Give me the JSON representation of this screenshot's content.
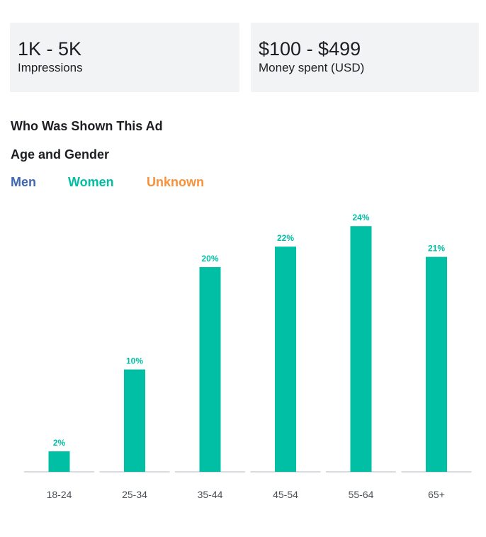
{
  "stats": {
    "impressions_value": "1K - 5K",
    "impressions_label": "Impressions",
    "money_value": "$100 - $499",
    "money_label": "Money spent (USD)"
  },
  "section_title": "Who Was Shown This Ad",
  "sub_title": "Age and Gender",
  "legend": {
    "men": "Men",
    "women": "Women",
    "unknown": "Unknown"
  },
  "colors": {
    "men": "#4267b2",
    "women": "#00bfa5",
    "unknown": "#f7923a",
    "axis": "#ccd0d5",
    "tick_text": "#4b4f56"
  },
  "chart_data": {
    "type": "bar",
    "categories": [
      "18-24",
      "25-34",
      "35-44",
      "45-54",
      "55-64",
      "65+"
    ],
    "series": [
      {
        "name": "Women",
        "values": [
          2,
          10,
          20,
          22,
          24,
          21
        ],
        "labels": [
          "2%",
          "10%",
          "20%",
          "22%",
          "24%",
          "21%"
        ]
      }
    ],
    "ylim": [
      0,
      24.5
    ],
    "grid": false,
    "legend_position": "top-left"
  }
}
